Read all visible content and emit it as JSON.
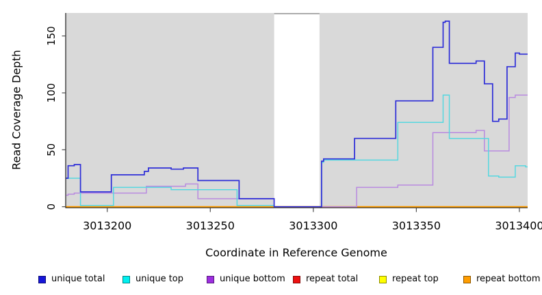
{
  "chart_data": {
    "type": "step-line",
    "title": "",
    "xlabel": "Coordinate in Reference Genome",
    "ylabel": "Read Coverage Depth",
    "xlim": [
      3013180,
      3013404
    ],
    "ylim": [
      0,
      170
    ],
    "x_ticks": [
      3013200,
      3013250,
      3013300,
      3013350,
      3013400
    ],
    "y_ticks": [
      0,
      50,
      100,
      150
    ],
    "grid": false,
    "legend_position": "bottom",
    "panel_background": "#d9d9d9",
    "masked_region": {
      "start": 3013281,
      "end": 3013303,
      "color": "#ffffff",
      "top_edge_color": "#999999"
    },
    "series": [
      {
        "name": "unique total",
        "line_color": "#2c2cd8",
        "legend_color": "#1616d9",
        "line_width": 1.7,
        "z": 6,
        "xend": 3013404,
        "steps": [
          [
            3013180,
            25
          ],
          [
            3013181,
            36
          ],
          [
            3013184,
            37
          ],
          [
            3013187,
            13
          ],
          [
            3013202,
            28
          ],
          [
            3013218,
            31
          ],
          [
            3013220,
            34
          ],
          [
            3013231,
            33
          ],
          [
            3013237,
            34
          ],
          [
            3013244,
            23
          ],
          [
            3013264,
            7
          ],
          [
            3013281,
            0
          ],
          [
            3013304,
            40
          ],
          [
            3013305,
            42
          ],
          [
            3013320,
            60
          ],
          [
            3013340,
            93
          ],
          [
            3013358,
            140
          ],
          [
            3013363,
            162
          ],
          [
            3013364,
            163
          ],
          [
            3013366,
            126
          ],
          [
            3013379,
            128
          ],
          [
            3013383,
            108
          ],
          [
            3013387,
            75
          ],
          [
            3013390,
            77
          ],
          [
            3013394,
            123
          ],
          [
            3013398,
            135
          ],
          [
            3013400,
            134
          ]
        ]
      },
      {
        "name": "unique top",
        "line_color": "#55d8e0",
        "legend_color": "#00f0f0",
        "line_width": 1.5,
        "z": 5,
        "xend": 3013404,
        "steps": [
          [
            3013180,
            25
          ],
          [
            3013187,
            1
          ],
          [
            3013203,
            17
          ],
          [
            3013231,
            15
          ],
          [
            3013263,
            1
          ],
          [
            3013281,
            0
          ],
          [
            3013304,
            39
          ],
          [
            3013305,
            41
          ],
          [
            3013341,
            74
          ],
          [
            3013363,
            98
          ],
          [
            3013366,
            60
          ],
          [
            3013385,
            27
          ],
          [
            3013390,
            26
          ],
          [
            3013398,
            36
          ],
          [
            3013403,
            35
          ]
        ]
      },
      {
        "name": "unique bottom",
        "line_color": "#b98ae0",
        "legend_color": "#9d2fe0",
        "line_width": 1.5,
        "z": 4,
        "xend": 3013404,
        "steps": [
          [
            3013180,
            10
          ],
          [
            3013181,
            11
          ],
          [
            3013184,
            12
          ],
          [
            3013219,
            18
          ],
          [
            3013238,
            20
          ],
          [
            3013244,
            7
          ],
          [
            3013281,
            0
          ],
          [
            3013321,
            17
          ],
          [
            3013341,
            19
          ],
          [
            3013358,
            65
          ],
          [
            3013379,
            67
          ],
          [
            3013383,
            49
          ],
          [
            3013395,
            96
          ],
          [
            3013398,
            98
          ]
        ]
      },
      {
        "name": "repeat total",
        "line_color": "#e01010",
        "legend_color": "#ee1111",
        "line_width": 1.5,
        "z": 1,
        "xend": 3013404,
        "steps": [
          [
            3013180,
            0
          ]
        ]
      },
      {
        "name": "repeat top",
        "line_color": "#f5f500",
        "legend_color": "#ffff00",
        "line_width": 1.5,
        "z": 2,
        "xend": 3013404,
        "steps": [
          [
            3013180,
            0
          ]
        ]
      },
      {
        "name": "repeat bottom",
        "line_color": "#ff9d00",
        "legend_color": "#ff9d00",
        "line_width": 1.8,
        "z": 3,
        "xend": 3013404,
        "steps": [
          [
            3013180,
            0
          ]
        ]
      }
    ]
  },
  "legend": {
    "items": [
      {
        "label": "unique total",
        "color": "#1616d9"
      },
      {
        "label": "unique top",
        "color": "#00f0f0"
      },
      {
        "label": "unique bottom",
        "color": "#9d2fe0"
      },
      {
        "label": "repeat total",
        "color": "#ee1111"
      },
      {
        "label": "repeat top",
        "color": "#ffff00"
      },
      {
        "label": "repeat bottom",
        "color": "#ff9d00"
      }
    ]
  }
}
